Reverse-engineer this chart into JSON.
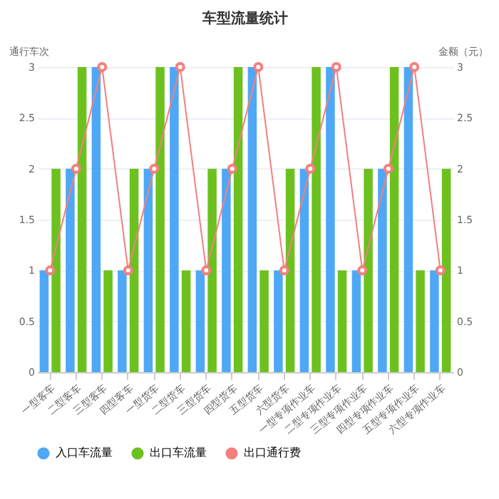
{
  "chart_data": {
    "type": "bar",
    "title": "车型流量统计",
    "ylabel": "通行车次",
    "y2label": "金额（元）",
    "categories": [
      "一型客车",
      "二型客车",
      "三型客车",
      "四型客车",
      "一型货车",
      "二型货车",
      "三型货车",
      "四型货车",
      "五型货车",
      "六型货车",
      "一型专项作业车",
      "二型专项作业车",
      "三型专项作业车",
      "四型专项作业车",
      "五型专项作业车",
      "六型专项作业车"
    ],
    "series": [
      {
        "name": "入口车流量",
        "color": "#4fa8f6",
        "values": [
          1,
          2,
          3,
          1,
          2,
          3,
          1,
          2,
          3,
          1,
          2,
          3,
          1,
          2,
          3,
          1
        ]
      },
      {
        "name": "出口车流量",
        "color": "#6cc11f",
        "values": [
          2,
          3,
          1,
          2,
          3,
          1,
          2,
          3,
          1,
          2,
          3,
          1,
          2,
          3,
          1,
          2
        ]
      },
      {
        "name": "出口通行费",
        "type": "line",
        "axis": "y2",
        "color": "#f47f7f",
        "values": [
          1,
          2,
          3,
          1,
          2,
          3,
          1,
          2,
          3,
          1,
          2,
          3,
          1,
          2,
          3,
          1
        ]
      }
    ],
    "ylim": [
      0,
      3
    ],
    "yticks": [
      0,
      0.5,
      1,
      1.5,
      2,
      2.5,
      3
    ],
    "y2lim": [
      0,
      3
    ],
    "y2ticks": [
      0,
      0.5,
      1,
      1.5,
      2,
      2.5,
      3
    ],
    "grid": "y",
    "legend": "bottom",
    "marker": "circle",
    "line_style": "solid"
  }
}
